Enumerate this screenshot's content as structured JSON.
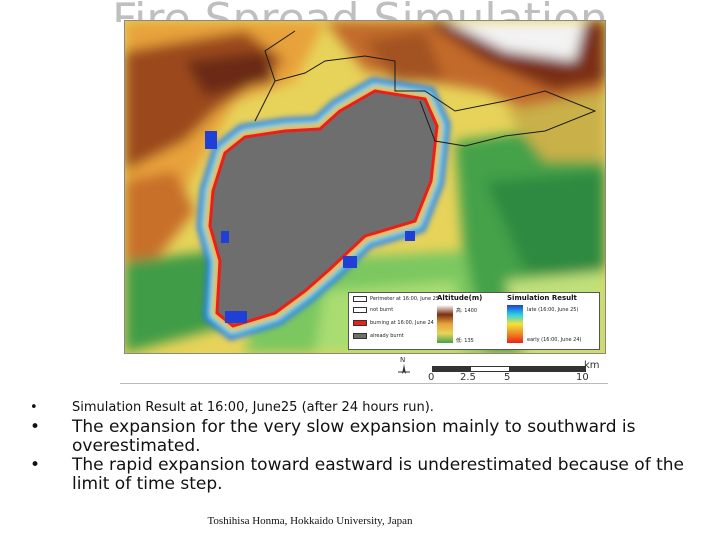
{
  "slide": {
    "title": "Fire Spread Simulation",
    "bullets": [
      "Simulation Result at 16:00, June25 (after 24 hours run).",
      "The expansion for the very slow expansion mainly to southward is overestimated.",
      "The rapid expansion toward eastward is underestimated because of the limit of time step."
    ],
    "bullet_symbol": "•",
    "credit": "Toshihisa Honma, Hokkaido University, Japan"
  },
  "map": {
    "legend": {
      "perimeter": "Perimeter at 16:00, June 25",
      "not_burnt": "not burnt",
      "burning": "burning at 16:00, June 24",
      "already_burnt": "already burnt",
      "altitude_header": "Altitude(m)",
      "alt_high": "高: 1400",
      "alt_low": "低: 135",
      "result_header": "Simulation Result",
      "late": "late (16:00, June 25)",
      "early": "early (16:00, June 24)"
    },
    "scale": {
      "ticks": [
        "0",
        "2.5",
        "5",
        "10"
      ],
      "unit": "km",
      "north": "N"
    },
    "colors": {
      "burnt": "#6e6e6e",
      "burning": "#e8201c",
      "perimeter": "#1a1a1a"
    }
  }
}
